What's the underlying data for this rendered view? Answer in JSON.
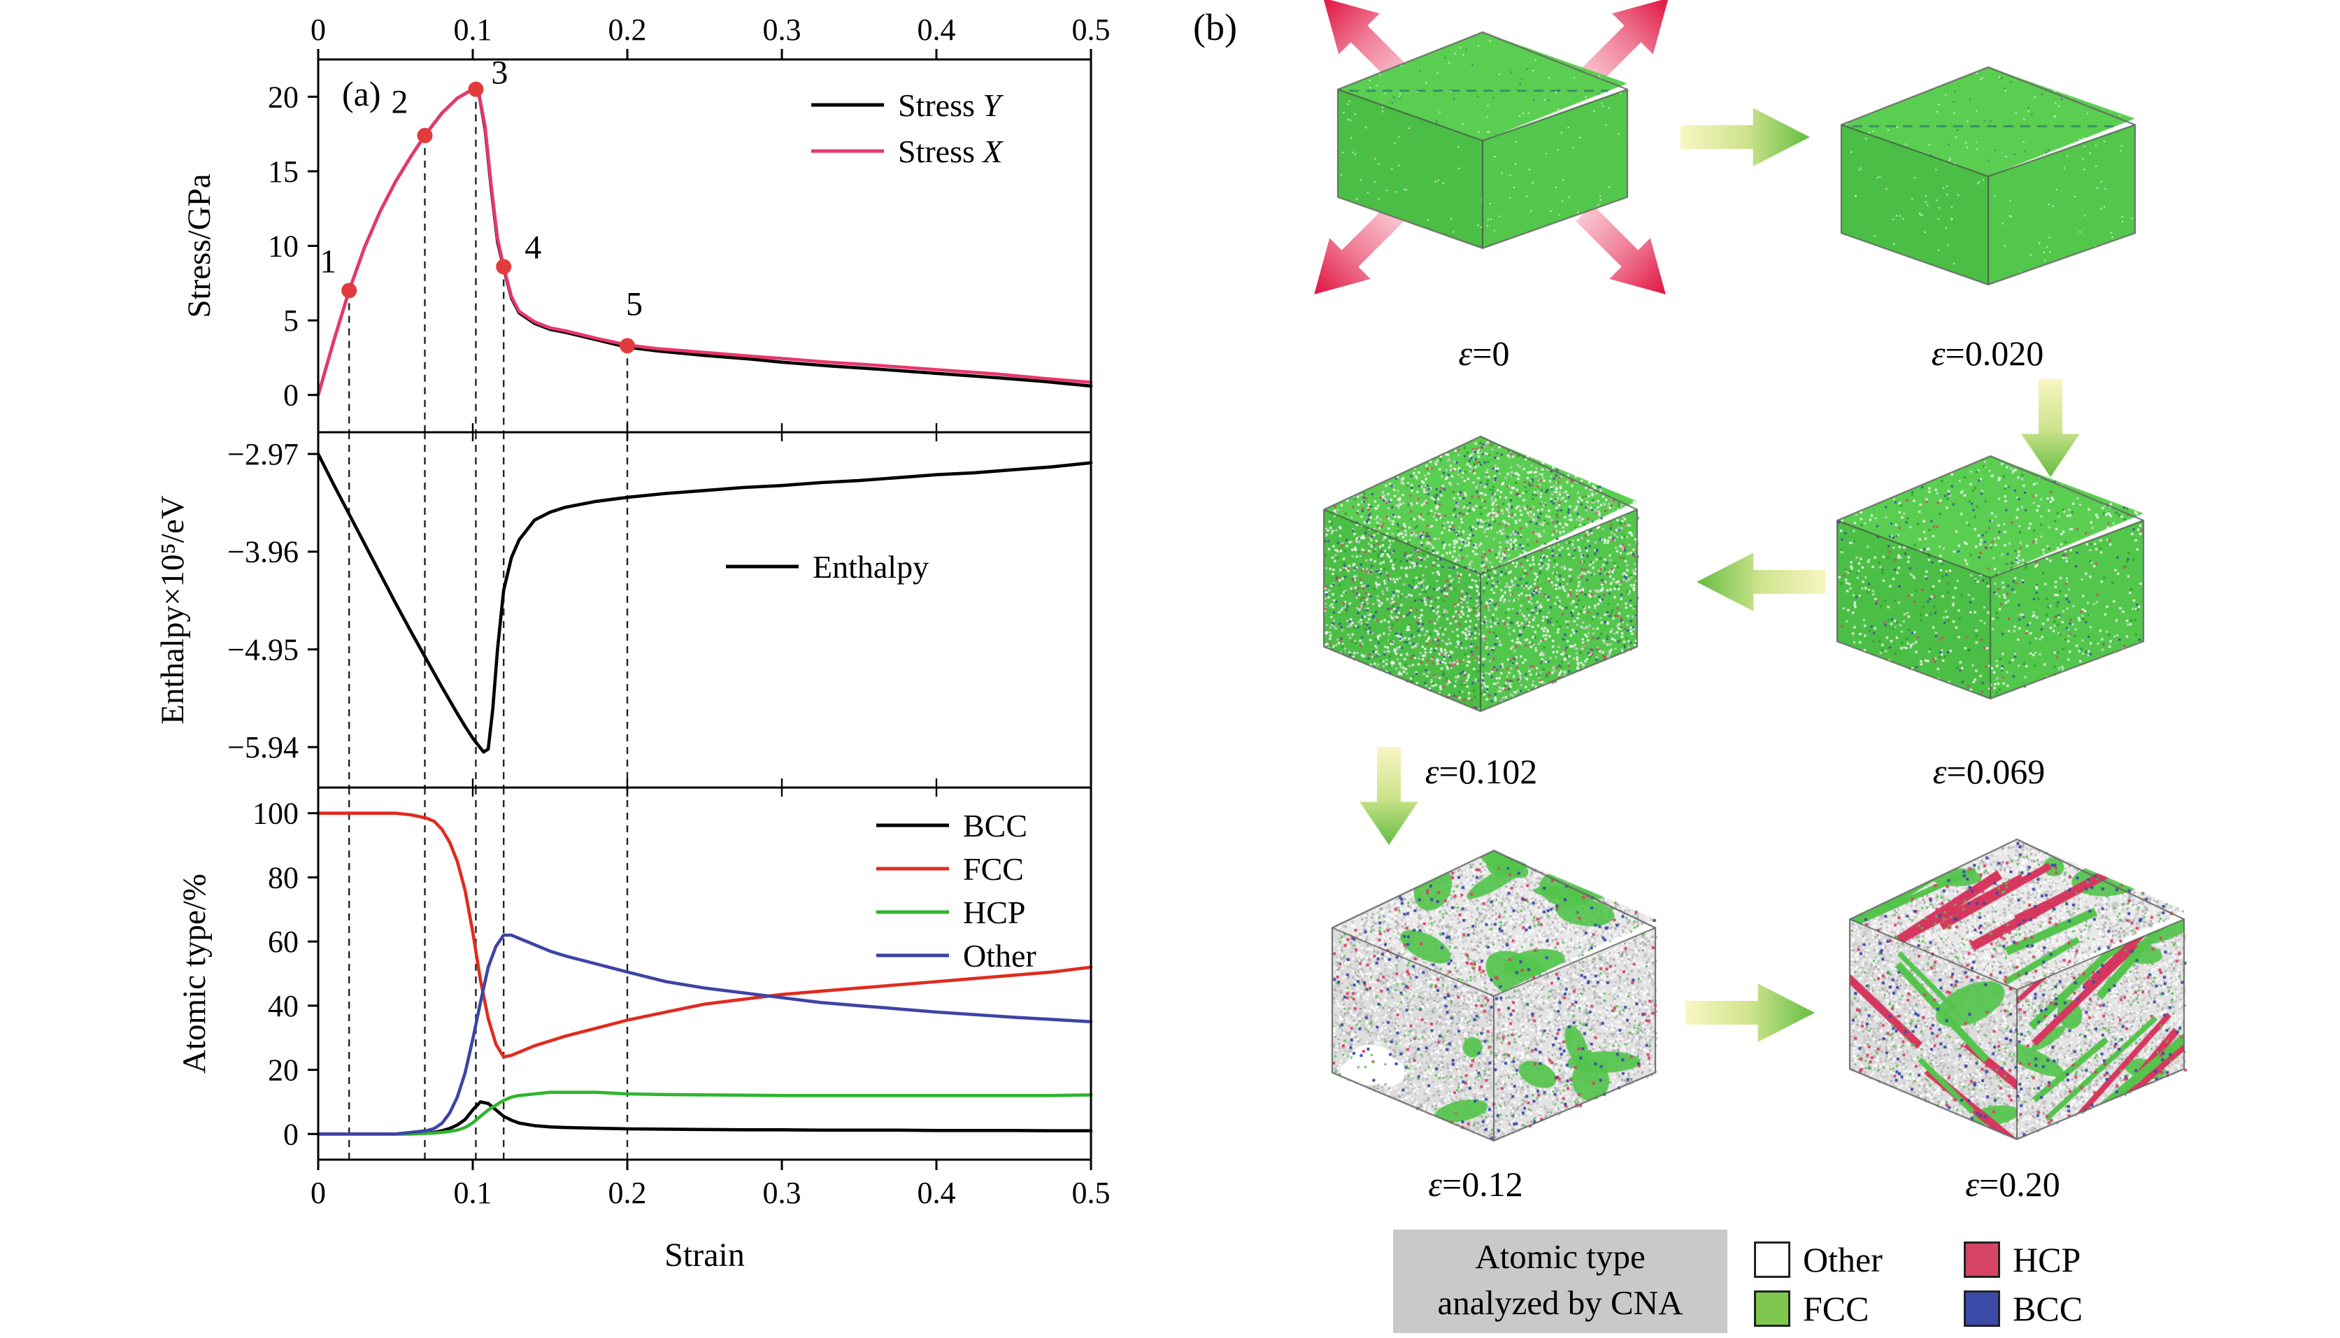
{
  "figure": {
    "panel_b_label": "(b)"
  },
  "chart_data": [
    {
      "type": "line",
      "name": "stress",
      "annotation": "(a)",
      "ylabel": "Stress/GPa",
      "xlabel": "",
      "xlim": [
        0,
        0.5
      ],
      "ylim": [
        -2.5,
        22.5
      ],
      "xticks": [
        0,
        0.1,
        0.2,
        0.3,
        0.4,
        0.5
      ],
      "xtick_labels": [
        "0",
        "0.1",
        "0.2",
        "0.3",
        "0.4",
        "0.5"
      ],
      "x_axis_labels_position": "top",
      "yticks": [
        0,
        5,
        10,
        15,
        20
      ],
      "ytick_labels": [
        "0",
        "5",
        "10",
        "15",
        "20"
      ],
      "legend_position": "top-right",
      "dashed_lines": [
        0.02,
        0.069,
        0.102,
        0.12,
        0.2
      ],
      "series": [
        {
          "name": "Stress Y",
          "color": "#000000",
          "x": [
            0,
            0.01,
            0.02,
            0.03,
            0.04,
            0.05,
            0.06,
            0.069,
            0.08,
            0.09,
            0.095,
            0.1,
            0.104,
            0.108,
            0.112,
            0.116,
            0.12,
            0.125,
            0.13,
            0.14,
            0.15,
            0.16,
            0.18,
            0.2,
            0.22,
            0.25,
            0.28,
            0.3,
            0.33,
            0.36,
            0.4,
            0.44,
            0.47,
            0.5
          ],
          "y": [
            0,
            3.6,
            7.0,
            9.9,
            12.3,
            14.3,
            16.0,
            17.4,
            18.9,
            19.9,
            20.2,
            20.5,
            20.2,
            17.8,
            13.8,
            10.3,
            8.5,
            6.5,
            5.5,
            4.8,
            4.4,
            4.2,
            3.7,
            3.2,
            2.95,
            2.65,
            2.4,
            2.2,
            1.95,
            1.75,
            1.45,
            1.15,
            0.9,
            0.6
          ]
        },
        {
          "name": "Stress X",
          "color": "#e8376b",
          "x": [
            0,
            0.01,
            0.02,
            0.03,
            0.04,
            0.05,
            0.06,
            0.069,
            0.08,
            0.09,
            0.095,
            0.1,
            0.104,
            0.108,
            0.112,
            0.116,
            0.12,
            0.125,
            0.13,
            0.14,
            0.15,
            0.16,
            0.18,
            0.2,
            0.22,
            0.25,
            0.28,
            0.3,
            0.33,
            0.36,
            0.4,
            0.44,
            0.47,
            0.5
          ],
          "y": [
            0,
            3.6,
            7.0,
            9.9,
            12.3,
            14.3,
            16.0,
            17.4,
            18.9,
            19.9,
            20.2,
            20.5,
            20.2,
            18.0,
            14.0,
            10.5,
            8.6,
            6.6,
            5.6,
            4.9,
            4.5,
            4.3,
            3.8,
            3.35,
            3.1,
            2.85,
            2.6,
            2.45,
            2.2,
            2.0,
            1.7,
            1.4,
            1.1,
            0.85
          ]
        }
      ],
      "markers": {
        "color": "#e23b3b",
        "label_color": "#cc2a2a",
        "points": [
          {
            "label": "1",
            "x": 0.02,
            "y": 7.0
          },
          {
            "label": "2",
            "x": 0.069,
            "y": 17.4
          },
          {
            "label": "3",
            "x": 0.102,
            "y": 20.5
          },
          {
            "label": "4",
            "x": 0.12,
            "y": 8.6
          },
          {
            "label": "5",
            "x": 0.2,
            "y": 3.3
          }
        ]
      }
    },
    {
      "type": "line",
      "name": "enthalpy",
      "ylabel": "Enthalpy×10⁵/eV",
      "xlabel": "",
      "xlim": [
        0,
        0.5
      ],
      "ylim": [
        -6.35,
        -2.75
      ],
      "xticks": [
        0,
        0.1,
        0.2,
        0.3,
        0.4,
        0.5
      ],
      "xtick_labels": [
        "0",
        "0.1",
        "0.2",
        "0.3",
        "0.4",
        "0.5"
      ],
      "yticks": [
        -2.97,
        -3.96,
        -4.95,
        -5.94
      ],
      "ytick_labels": [
        "−2.97",
        "−3.96",
        "−4.95",
        "−5.94"
      ],
      "legend_position": "middle-right",
      "dashed_lines": [
        0.02,
        0.069,
        0.102,
        0.12,
        0.2
      ],
      "series": [
        {
          "name": "Enthalpy",
          "color": "#000000",
          "x": [
            0,
            0.01,
            0.02,
            0.03,
            0.04,
            0.05,
            0.06,
            0.07,
            0.08,
            0.09,
            0.095,
            0.1,
            0.104,
            0.107,
            0.11,
            0.113,
            0.116,
            0.12,
            0.125,
            0.13,
            0.14,
            0.15,
            0.16,
            0.18,
            0.2,
            0.225,
            0.25,
            0.275,
            0.3,
            0.325,
            0.35,
            0.375,
            0.4,
            0.425,
            0.45,
            0.475,
            0.5
          ],
          "y": [
            -2.97,
            -3.28,
            -3.58,
            -3.88,
            -4.18,
            -4.48,
            -4.77,
            -5.05,
            -5.33,
            -5.6,
            -5.73,
            -5.85,
            -5.93,
            -5.99,
            -5.96,
            -5.55,
            -4.95,
            -4.35,
            -4.02,
            -3.84,
            -3.64,
            -3.56,
            -3.51,
            -3.45,
            -3.41,
            -3.37,
            -3.34,
            -3.31,
            -3.29,
            -3.26,
            -3.24,
            -3.21,
            -3.18,
            -3.16,
            -3.13,
            -3.1,
            -3.06
          ]
        }
      ]
    },
    {
      "type": "line",
      "name": "atomic",
      "ylabel": "Atomic type/%",
      "xlabel": "Strain",
      "xlim": [
        0,
        0.5
      ],
      "ylim": [
        -8,
        108
      ],
      "xticks": [
        0,
        0.1,
        0.2,
        0.3,
        0.4,
        0.5
      ],
      "xtick_labels": [
        "0",
        "0.1",
        "0.2",
        "0.3",
        "0.4",
        "0.5"
      ],
      "x_axis_labels_position": "bottom",
      "yticks": [
        0,
        20,
        40,
        60,
        80,
        100
      ],
      "ytick_labels": [
        "0",
        "20",
        "40",
        "60",
        "80",
        "100"
      ],
      "legend_position": "top-right",
      "dashed_lines": [
        0.02,
        0.069,
        0.102,
        0.12,
        0.2
      ],
      "series": [
        {
          "name": "BCC",
          "color": "#000000",
          "x": [
            0,
            0.02,
            0.04,
            0.05,
            0.06,
            0.07,
            0.075,
            0.08,
            0.085,
            0.09,
            0.095,
            0.1,
            0.105,
            0.11,
            0.115,
            0.12,
            0.125,
            0.13,
            0.14,
            0.15,
            0.16,
            0.18,
            0.2,
            0.225,
            0.25,
            0.275,
            0.3,
            0.325,
            0.35,
            0.375,
            0.4,
            0.425,
            0.45,
            0.475,
            0.5
          ],
          "y": [
            0,
            0,
            0,
            0,
            0,
            0.3,
            0.5,
            1,
            1.7,
            2.8,
            4.5,
            7.5,
            10,
            9.5,
            7.5,
            5.5,
            4.3,
            3.4,
            2.6,
            2.2,
            2,
            1.8,
            1.6,
            1.5,
            1.4,
            1.3,
            1.3,
            1.2,
            1.2,
            1.2,
            1.1,
            1.1,
            1.1,
            1,
            1
          ]
        },
        {
          "name": "FCC",
          "color": "#e02b20",
          "x": [
            0,
            0.02,
            0.04,
            0.05,
            0.06,
            0.07,
            0.075,
            0.08,
            0.085,
            0.09,
            0.095,
            0.1,
            0.105,
            0.11,
            0.115,
            0.12,
            0.125,
            0.13,
            0.14,
            0.15,
            0.16,
            0.18,
            0.2,
            0.225,
            0.25,
            0.275,
            0.3,
            0.325,
            0.35,
            0.375,
            0.4,
            0.425,
            0.45,
            0.475,
            0.5
          ],
          "y": [
            100,
            100,
            100,
            100,
            99.5,
            98.5,
            97.5,
            95,
            91,
            85,
            76,
            63,
            48,
            36,
            28,
            24,
            24.5,
            25.5,
            27.5,
            29,
            30.5,
            33,
            35.5,
            38,
            40.5,
            42,
            43.5,
            44.5,
            45.5,
            46.5,
            47.5,
            48.5,
            49.5,
            50.5,
            52
          ]
        },
        {
          "name": "HCP",
          "color": "#2eb52e",
          "x": [
            0,
            0.02,
            0.04,
            0.05,
            0.06,
            0.07,
            0.075,
            0.08,
            0.085,
            0.09,
            0.095,
            0.1,
            0.105,
            0.11,
            0.115,
            0.12,
            0.125,
            0.13,
            0.14,
            0.15,
            0.16,
            0.18,
            0.2,
            0.225,
            0.25,
            0.275,
            0.3,
            0.325,
            0.35,
            0.375,
            0.4,
            0.425,
            0.45,
            0.475,
            0.5
          ],
          "y": [
            0,
            0,
            0,
            0,
            0,
            0.2,
            0.3,
            0.5,
            0.8,
            1.2,
            2,
            3.5,
            5.5,
            7.5,
            9,
            10.5,
            11.5,
            12,
            12.5,
            13,
            13,
            13,
            12.5,
            12.3,
            12.2,
            12.1,
            12,
            12,
            12,
            12,
            12,
            12,
            12,
            12,
            12.2
          ]
        },
        {
          "name": "Other",
          "color": "#3d44a5",
          "x": [
            0,
            0.02,
            0.04,
            0.05,
            0.06,
            0.07,
            0.075,
            0.08,
            0.085,
            0.09,
            0.095,
            0.1,
            0.105,
            0.11,
            0.115,
            0.12,
            0.125,
            0.13,
            0.14,
            0.15,
            0.16,
            0.18,
            0.2,
            0.225,
            0.25,
            0.275,
            0.3,
            0.325,
            0.35,
            0.375,
            0.4,
            0.425,
            0.45,
            0.475,
            0.5
          ],
          "y": [
            0,
            0,
            0,
            0,
            0.5,
            1,
            1.7,
            3.3,
            6.5,
            11.5,
            19,
            29.5,
            41,
            52,
            58.5,
            62,
            62,
            61,
            59,
            57,
            55.5,
            53,
            50.5,
            47.5,
            45.5,
            44,
            42.5,
            41,
            40,
            39,
            38,
            37.2,
            36.4,
            35.7,
            35
          ]
        }
      ]
    }
  ],
  "panel_b": {
    "snapshots": [
      {
        "label": "ε=0",
        "state": "pristine"
      },
      {
        "label": "ε=0.020",
        "state": "pristine-edge"
      },
      {
        "label": "ε=0.102",
        "state": "speckle-heavy"
      },
      {
        "label": "ε=0.069",
        "state": "speckle-light"
      },
      {
        "label": "ε=0.12",
        "state": "defect-patches"
      },
      {
        "label": "ε=0.20",
        "state": "defect-bands"
      }
    ],
    "legend": {
      "box_label_line1": "Atomic type",
      "box_label_line2": "analyzed by CNA",
      "items": [
        {
          "label": "Other",
          "color": "#ffffff"
        },
        {
          "label": "FCC",
          "color": "#7fc84f"
        },
        {
          "label": "HCP",
          "color": "#d64565"
        },
        {
          "label": "BCC",
          "color": "#3c4ba8"
        }
      ]
    }
  }
}
